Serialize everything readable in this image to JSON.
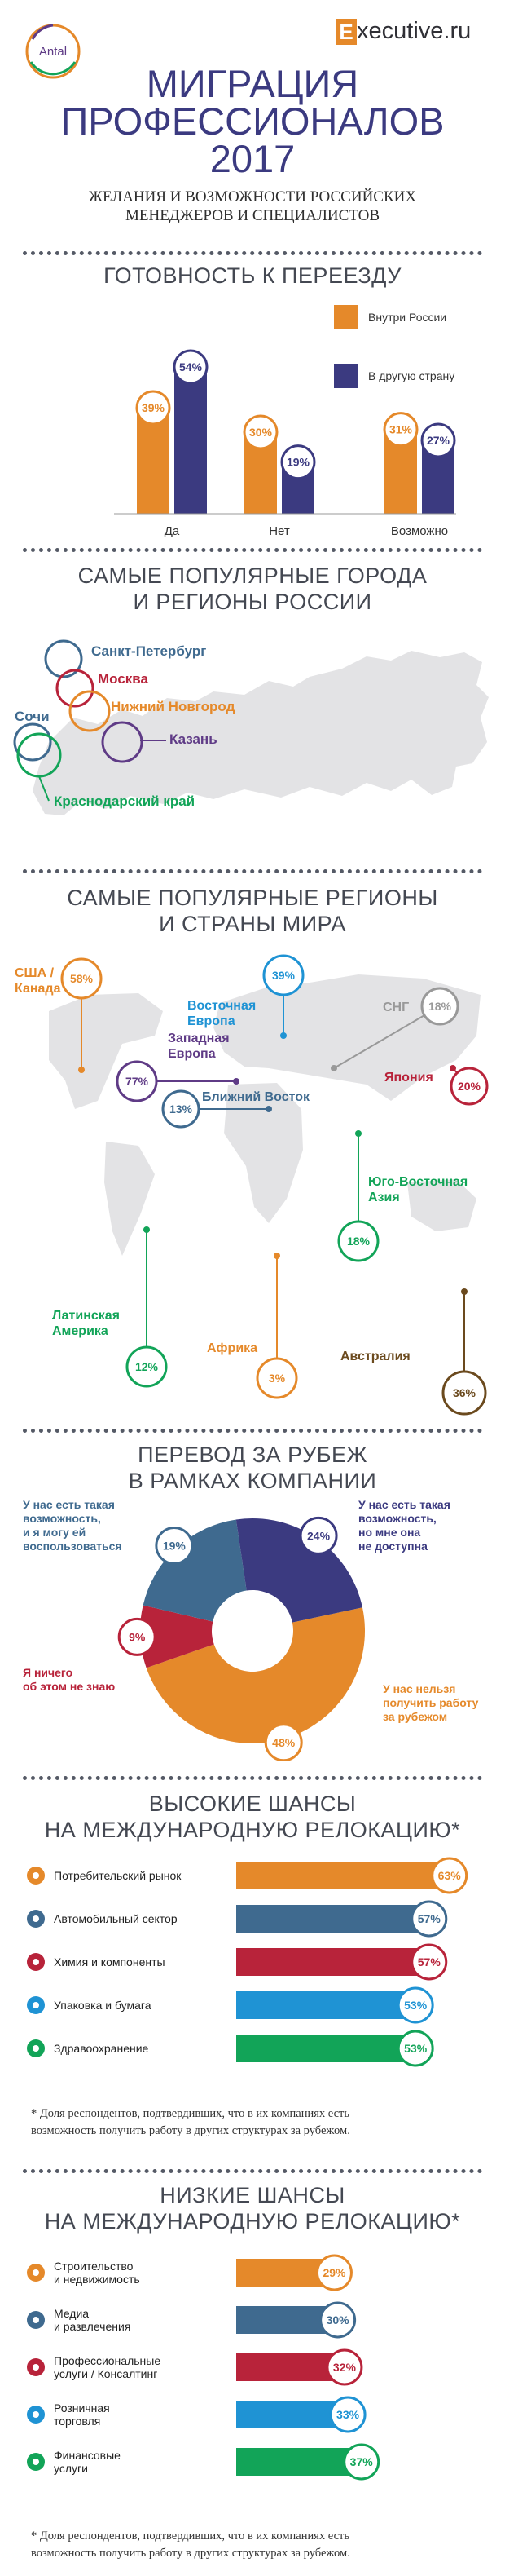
{
  "header": {
    "antal_logo": "Antal",
    "executive_logo": {
      "letter": "E",
      "text": "xecutive.ru"
    },
    "title_line1": "МИГРАЦИЯ",
    "title_line2": "ПРОФЕССИОНАЛОВ",
    "title_line3": "2017",
    "subtitle_line1": "ЖЕЛАНИЯ И ВОЗМОЖНОСТИ РОССИЙСКИХ",
    "subtitle_line2": "МЕНЕДЖЕРОВ И СПЕЦИАЛИСТОВ"
  },
  "colors": {
    "orange": "#e5892a",
    "navy": "#3b3a80",
    "slate": "#3f6a8f",
    "red": "#b8233a",
    "blue": "#1f93d4",
    "green": "#12a458",
    "gray": "#444852"
  },
  "readiness": {
    "title": "ГОТОВНОСТЬ К ПЕРЕЕЗДУ",
    "chart_data": {
      "type": "bar",
      "categories": [
        "Да",
        "Нет",
        "Возможно"
      ],
      "series": [
        {
          "name": "Внутри России",
          "values": [
            39,
            30,
            31
          ],
          "labels": [
            "39%",
            "30%",
            "31%"
          ],
          "color": "#e5892a"
        },
        {
          "name": "В другую страну",
          "values": [
            54,
            19,
            27
          ],
          "labels": [
            "54%",
            "19%",
            "27%"
          ],
          "color": "#3b3a80"
        }
      ],
      "unit": "%",
      "ylim": [
        0,
        60
      ]
    }
  },
  "russia": {
    "title_line1": "САМЫЕ ПОПУЛЯРНЫЕ ГОРОДА",
    "title_line2": "И РЕГИОНЫ РОССИИ",
    "cities": [
      {
        "name": "Санкт-Петербург",
        "color": "#3f6a8f"
      },
      {
        "name": "Москва",
        "color": "#b8233a"
      },
      {
        "name": "Нижний Новгород",
        "color": "#e5892a"
      },
      {
        "name": "Сочи",
        "color": "#3f6a8f"
      },
      {
        "name": "Казань",
        "color": "#5f3b86"
      },
      {
        "name": "Краснодарский край",
        "color": "#12a458"
      }
    ]
  },
  "world": {
    "title_line1": "САМЫЕ ПОПУЛЯРНЫЕ РЕГИОНЫ",
    "title_line2": "И СТРАНЫ МИРА",
    "regions": [
      {
        "name_line1": "США /",
        "name_line2": "Канада",
        "value": "58%",
        "color": "#e5892a"
      },
      {
        "name_line1": "Восточная",
        "name_line2": "Европа",
        "value": "39%",
        "color": "#1f93d4"
      },
      {
        "name_line1": "Западная",
        "name_line2": "Европа",
        "value": "77%",
        "color": "#5f3b86"
      },
      {
        "name_line1": "Ближний Восток",
        "name_line2": "",
        "value": "13%",
        "color": "#3f6a8f"
      },
      {
        "name_line1": "СНГ",
        "name_line2": "",
        "value": "18%",
        "color": "#999999"
      },
      {
        "name_line1": "Япония",
        "name_line2": "",
        "value": "20%",
        "color": "#b8233a"
      },
      {
        "name_line1": "Юго-Восточная",
        "name_line2": "Азия",
        "value": "18%",
        "color": "#12a458"
      },
      {
        "name_line1": "Латинская",
        "name_line2": "Америка",
        "value": "12%",
        "color": "#12a458"
      },
      {
        "name_line1": "Африка",
        "name_line2": "",
        "value": "3%",
        "color": "#e5892a"
      },
      {
        "name_line1": "Австралия",
        "name_line2": "",
        "value": "36%",
        "color": "#6b4a1e"
      }
    ]
  },
  "transfer": {
    "title_line1": "ПЕРЕВОД ЗА РУБЕЖ",
    "title_line2": "В РАМКАХ КОМПАНИИ",
    "chart_data": {
      "type": "pie",
      "slices": [
        {
          "label": "У нас нельзя получить работу за рубежом",
          "value": 48,
          "text": "48%",
          "color": "#e5892a"
        },
        {
          "label": "Я ничего об этом не знаю",
          "value": 9,
          "text": "9%",
          "color": "#b8233a"
        },
        {
          "label": "У нас есть такая возможность, и я могу ей воспользоваться",
          "value": 19,
          "text": "19%",
          "color": "#3f6a8f"
        },
        {
          "label": "У нас есть такая возможность, но мне она не доступна",
          "value": 24,
          "text": "24%",
          "color": "#3b3a80"
        }
      ]
    },
    "labels": {
      "top_left": [
        "У нас есть такая",
        "возможность,",
        "и я могу ей",
        "воспользоваться"
      ],
      "top_right": [
        "У нас есть такая",
        "возможность,",
        "но мне она",
        "не доступна"
      ],
      "left": [
        "Я ничего",
        "об этом не знаю"
      ],
      "bottom_right": [
        "У нас нельзя",
        "получить работу",
        "за рубежом"
      ]
    }
  },
  "high": {
    "title_line1": "ВЫСОКИЕ ШАНСЫ",
    "title_line2": "НА МЕЖДУНАРОДНУЮ РЕЛОКАЦИЮ*",
    "chart_data": {
      "type": "bar",
      "orientation": "horizontal",
      "categories": [
        "Потребительский рынок",
        "Автомобильный сектор",
        "Химия и компоненты",
        "Упаковка и бумага",
        "Здравоохранение"
      ],
      "values": [
        63,
        57,
        57,
        53,
        53
      ],
      "labels": [
        "63%",
        "57%",
        "57%",
        "53%",
        "53%"
      ],
      "colors": [
        "#e5892a",
        "#3f6a8f",
        "#b8233a",
        "#1f93d4",
        "#12a458"
      ],
      "icons": [
        "cart-icon",
        "car-icon",
        "flask-icon",
        "box-icon",
        "cross-icon"
      ]
    },
    "footnote_line1": "* Доля респондентов, подтвердивших, что в их компаниях есть",
    "footnote_line2": "возможность получить работу в других структурах за рубежом."
  },
  "low": {
    "title_line1": "НИЗКИЕ ШАНСЫ",
    "title_line2": "НА МЕЖДУНАРОДНУЮ РЕЛОКАЦИЮ*",
    "chart_data": {
      "type": "bar",
      "orientation": "horizontal",
      "categories": [
        "Строительство и недвижимость",
        "Медиа и развлечения",
        "Профессиональные услуги / Консалтинг",
        "Розничная торговля",
        "Финансовые услуги"
      ],
      "category_lines": [
        [
          "Строительство",
          "и недвижимость"
        ],
        [
          "Медиа",
          "и развлечения"
        ],
        [
          "Профессиональные",
          "услуги / Консалтинг"
        ],
        [
          "Розничная",
          "торговля"
        ],
        [
          "Финансовые",
          "услуги"
        ]
      ],
      "values": [
        29,
        30,
        32,
        33,
        37
      ],
      "labels": [
        "29%",
        "30%",
        "32%",
        "33%",
        "37%"
      ],
      "colors": [
        "#e5892a",
        "#3f6a8f",
        "#b8233a",
        "#1f93d4",
        "#12a458"
      ],
      "icons": [
        "crane-icon",
        "film-icon",
        "briefcase-icon",
        "bag-icon",
        "coins-icon"
      ]
    },
    "footnote_line1": "* Доля респондентов, подтвердивших, что в их компаниях есть",
    "footnote_line2": "возможность получить работу в других структурах за рубежом."
  }
}
